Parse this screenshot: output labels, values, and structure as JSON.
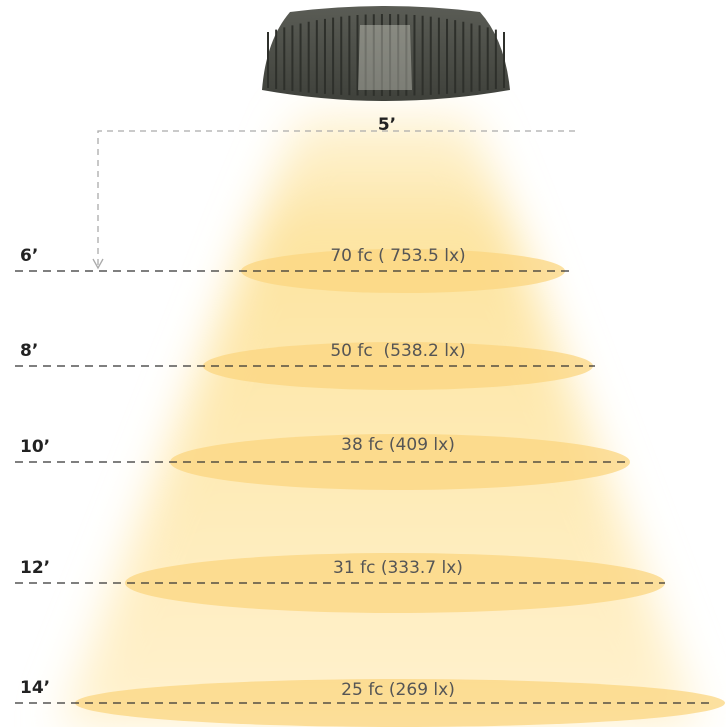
{
  "lamp_label": "5’",
  "levels": [
    {
      "height": "6’",
      "illuminance": "70 fc ( 753.5 lx)"
    },
    {
      "height": "8’",
      "illuminance": "50 fc  (538.2 lx)"
    },
    {
      "height": "10’",
      "illuminance": "38 fc (409 lx)"
    },
    {
      "height": "12’",
      "illuminance": "31 fc (333.7 lx)"
    },
    {
      "height": "14’",
      "illuminance": "25 fc (269 lx)"
    }
  ]
}
